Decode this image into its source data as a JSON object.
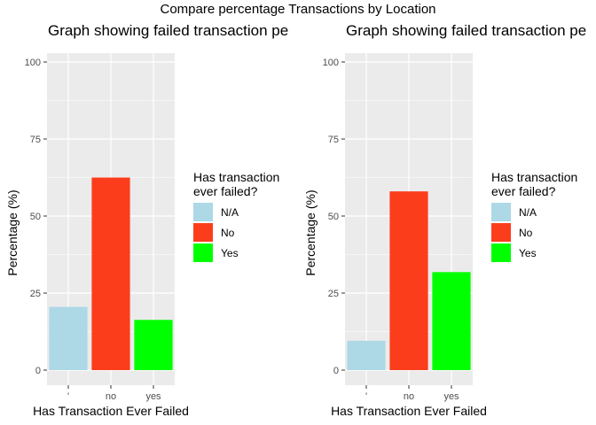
{
  "suptitle": "Compare percentage Transactions by Location",
  "colors": {
    "N/A": "#add8e6",
    "No": "#fc3d1c",
    "Yes": "#00ff00",
    "panel_bg": "#ebebeb",
    "grid": "#ffffff"
  },
  "chart_data": [
    {
      "type": "bar",
      "title": "Graph showing failed transaction pe",
      "xlabel": "Has Transaction Ever Failed",
      "ylabel": "Percentage (%)",
      "categories": [
        "'",
        "no",
        "yes"
      ],
      "values": [
        20.5,
        62.5,
        16.3
      ],
      "fill_groups": [
        "N/A",
        "No",
        "Yes"
      ],
      "ylim": [
        0,
        100
      ],
      "yticks": [
        0,
        25,
        50,
        75,
        100
      ],
      "legend": {
        "title": "Has transaction ever failed?",
        "entries": [
          "N/A",
          "No",
          "Yes"
        ],
        "position": "right"
      },
      "grid": true
    },
    {
      "type": "bar",
      "title": "Graph showing failed transaction pe",
      "xlabel": "Has Transaction Ever Failed",
      "ylabel": "Percentage (%)",
      "categories": [
        "'",
        "no",
        "yes"
      ],
      "values": [
        9.5,
        58.0,
        31.8
      ],
      "fill_groups": [
        "N/A",
        "No",
        "Yes"
      ],
      "ylim": [
        0,
        100
      ],
      "yticks": [
        0,
        25,
        50,
        75,
        100
      ],
      "legend": {
        "title": "Has transaction ever failed?",
        "entries": [
          "N/A",
          "No",
          "Yes"
        ],
        "position": "right"
      },
      "grid": true
    }
  ]
}
